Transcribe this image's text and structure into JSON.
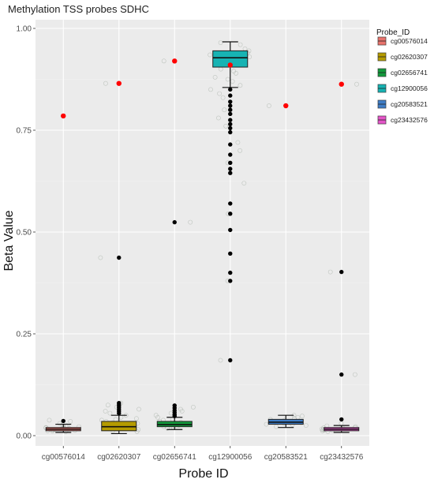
{
  "chart_data": {
    "type": "box",
    "title": "Methylation TSS probes SDHC",
    "xlabel": "Probe ID",
    "ylabel": "Beta Value",
    "ylim": [
      0,
      1
    ],
    "yticks": [
      "0.00",
      "0.25",
      "0.50",
      "0.75",
      "1.00"
    ],
    "grid": true,
    "background": "#ebebeb",
    "legend": {
      "title": "Probe_ID",
      "position": "right"
    },
    "categories": [
      "cg00576014",
      "cg02620307",
      "cg02656741",
      "cg12900056",
      "cg20583521",
      "cg23432576"
    ],
    "colors": [
      "#e8736c",
      "#b59b00",
      "#139a3c",
      "#17b3b3",
      "#3f7dc6",
      "#e455c8"
    ],
    "mean_color": "#ff0000",
    "boxes": [
      {
        "q1": 0.012,
        "median": 0.016,
        "q3": 0.02,
        "whisker_low": 0.008,
        "whisker_high": 0.028,
        "mean": 0.785,
        "outliers": [
          0.036
        ],
        "jitter": [
          0.785,
          0.01,
          0.012,
          0.014,
          0.016,
          0.018,
          0.02,
          0.022,
          0.025,
          0.03,
          0.015,
          0.013,
          0.017,
          0.019,
          0.021,
          0.011,
          0.035,
          0.038,
          0.024,
          0.026
        ]
      },
      {
        "q1": 0.012,
        "median": 0.022,
        "q3": 0.035,
        "whisker_low": 0.005,
        "whisker_high": 0.05,
        "mean": 0.865,
        "outliers": [
          0.437,
          0.055,
          0.06,
          0.065,
          0.07,
          0.075,
          0.08
        ],
        "jitter": [
          0.865,
          0.437,
          0.01,
          0.015,
          0.02,
          0.025,
          0.03,
          0.035,
          0.04,
          0.045,
          0.05,
          0.055,
          0.06,
          0.065,
          0.07,
          0.075,
          0.08,
          0.018,
          0.022,
          0.028,
          0.032,
          0.012,
          0.038,
          0.042
        ]
      },
      {
        "q1": 0.022,
        "median": 0.027,
        "q3": 0.035,
        "whisker_low": 0.015,
        "whisker_high": 0.045,
        "mean": 0.92,
        "outliers": [
          0.524,
          0.048,
          0.052,
          0.057,
          0.062,
          0.068,
          0.074
        ],
        "jitter": [
          0.92,
          0.524,
          0.02,
          0.022,
          0.025,
          0.027,
          0.03,
          0.033,
          0.035,
          0.038,
          0.04,
          0.045,
          0.05,
          0.055,
          0.06,
          0.065,
          0.07,
          0.018,
          0.028,
          0.032
        ]
      },
      {
        "q1": 0.905,
        "median": 0.928,
        "q3": 0.945,
        "whisker_low": 0.855,
        "whisker_high": 0.967,
        "mean": 0.91,
        "outliers": [
          0.85,
          0.835,
          0.82,
          0.81,
          0.8,
          0.79,
          0.775,
          0.765,
          0.755,
          0.745,
          0.715,
          0.69,
          0.67,
          0.655,
          0.645,
          0.57,
          0.545,
          0.505,
          0.447,
          0.4,
          0.38,
          0.185
        ],
        "jitter": [
          0.67,
          0.62,
          0.545,
          0.38,
          0.185,
          0.84,
          0.86,
          0.88,
          0.9,
          0.91,
          0.92,
          0.93,
          0.94,
          0.95,
          0.96,
          0.89,
          0.87,
          0.85,
          0.83,
          0.8,
          0.78,
          0.76,
          0.72,
          0.7,
          0.965,
          0.945,
          0.935,
          0.915,
          0.895,
          0.875
        ]
      },
      {
        "q1": 0.028,
        "median": 0.033,
        "q3": 0.04,
        "whisker_low": 0.02,
        "whisker_high": 0.05,
        "mean": 0.81,
        "outliers": [],
        "jitter": [
          0.81,
          0.025,
          0.03,
          0.032,
          0.035,
          0.038,
          0.04,
          0.045,
          0.048,
          0.022,
          0.028,
          0.036,
          0.042,
          0.05,
          0.027
        ]
      },
      {
        "q1": 0.012,
        "median": 0.016,
        "q3": 0.02,
        "whisker_low": 0.008,
        "whisker_high": 0.025,
        "mean": 0.863,
        "outliers": [
          0.402,
          0.15,
          0.04
        ],
        "jitter": [
          0.863,
          0.402,
          0.15,
          0.01,
          0.012,
          0.014,
          0.016,
          0.018,
          0.02,
          0.022,
          0.024,
          0.03,
          0.015,
          0.013,
          0.017,
          0.019
        ]
      }
    ]
  }
}
